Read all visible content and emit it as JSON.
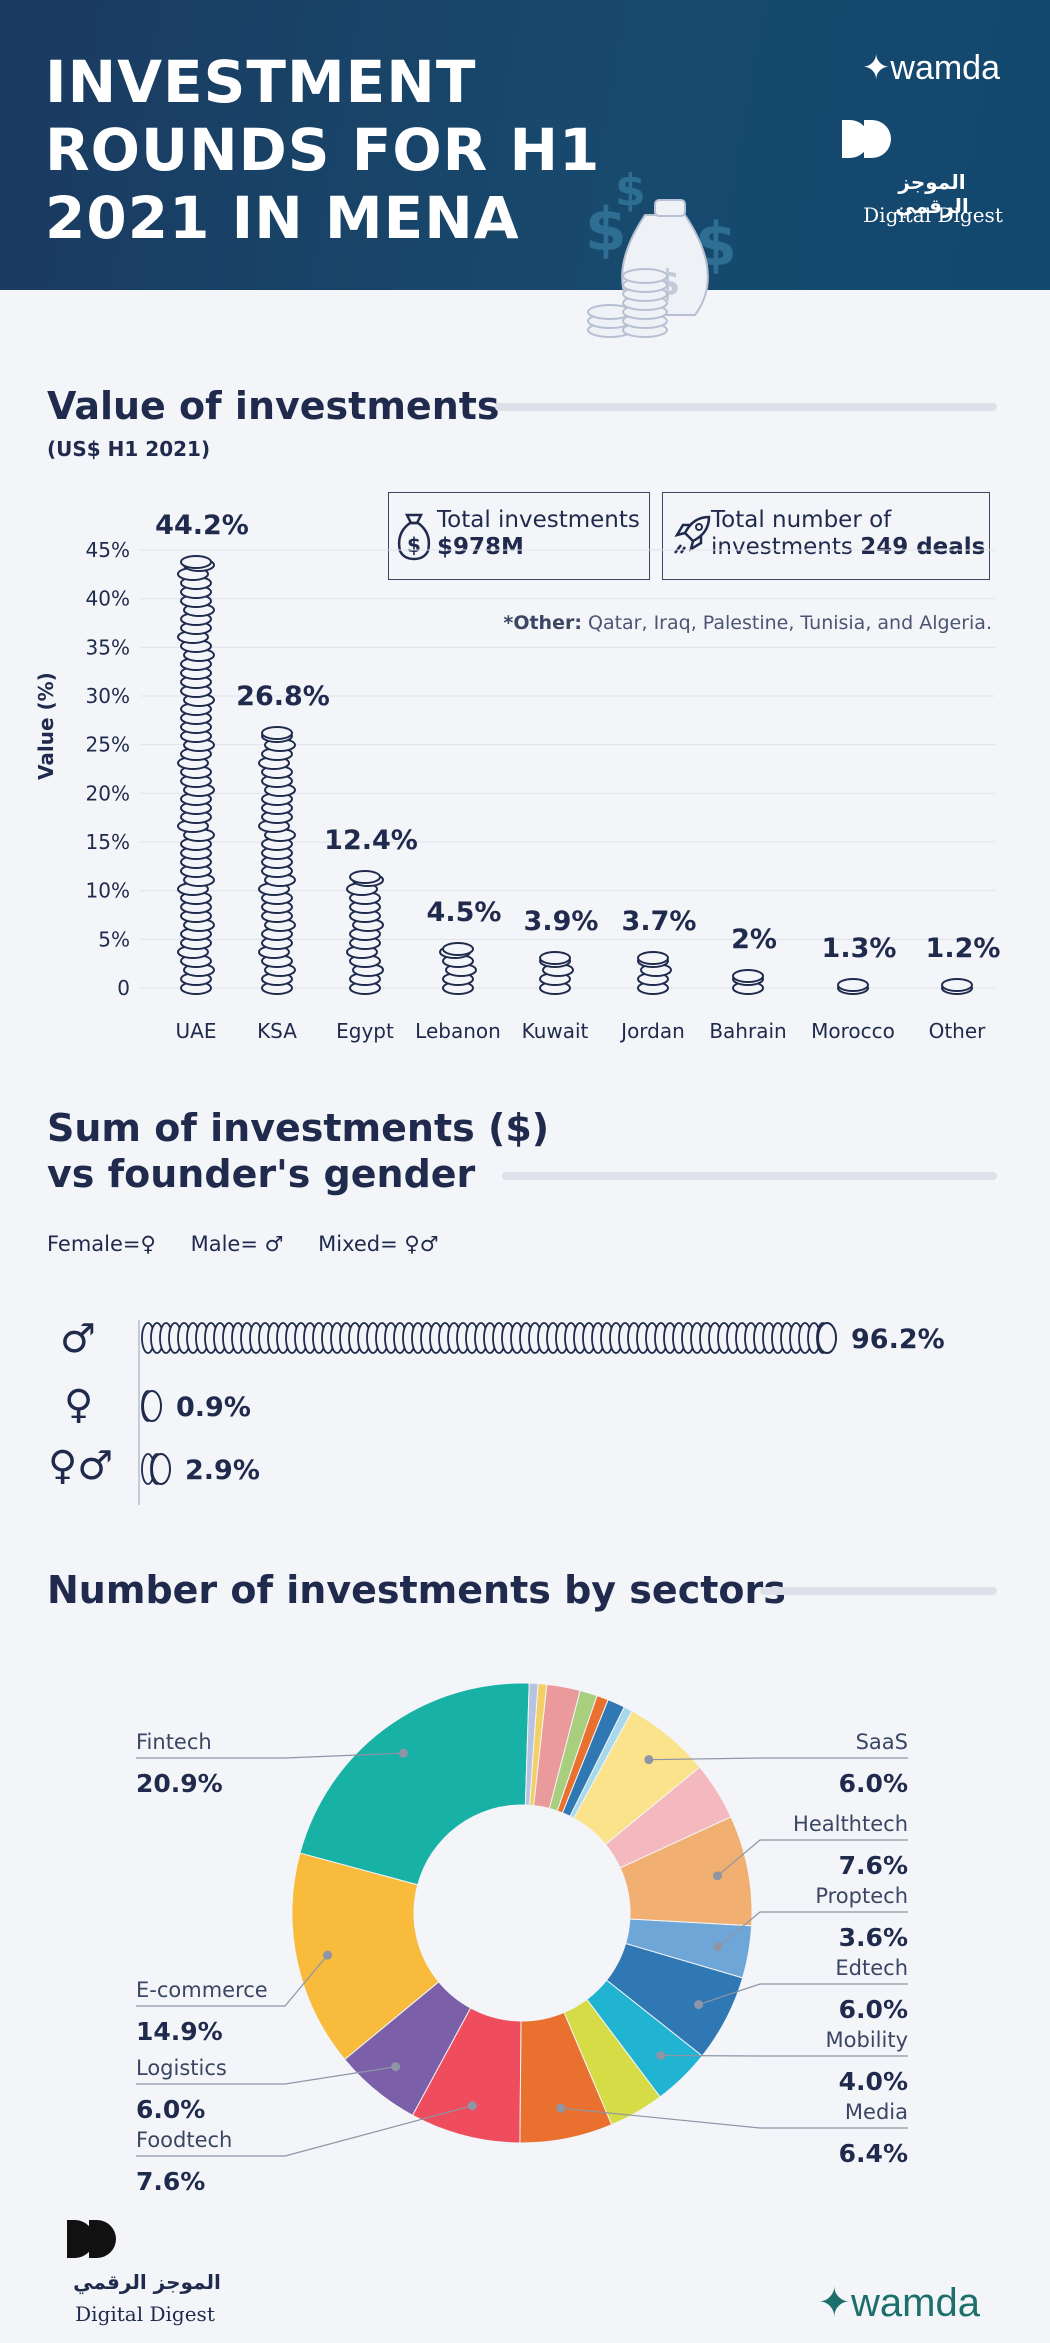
{
  "header": {
    "title": "INVESTMENT ROUNDS FOR H1 2021 IN MENA",
    "wamda": "✦wamda",
    "digest_ar": "الموجز الرقمي",
    "digest_en": "Digital Digest",
    "bg_color": "#1a3a60"
  },
  "value_section": {
    "title": "Value of investments",
    "subtitle": "(US$ H1 2021)",
    "total_label": "Total investments",
    "total_value": "$978M",
    "deals_label_1": "Total number of",
    "deals_label_2": "investments",
    "deals_value": "249 deals",
    "note_bold": "*Other:",
    "note_text": " Qatar, Iraq, Palestine, Tunisia, and Algeria.",
    "total_icon": "money-bag-icon",
    "deals_icon": "rocket-icon"
  },
  "gender_section": {
    "title_1": "Sum of investments ($)",
    "title_2": "vs founder's gender",
    "legend_female": "Female=♀",
    "legend_male": "Male= ♂",
    "legend_mixed": "Mixed= ♀♂",
    "male_symbol": "♂",
    "female_symbol": "♀",
    "mixed_symbol": "♀♂"
  },
  "sector_section": {
    "title": "Number of investments by sectors"
  },
  "footer": {
    "digest_ar": "الموجز الرقمي",
    "digest_en": "Digital Digest",
    "wamda": "✦wamda"
  },
  "chart_data": [
    {
      "type": "bar",
      "ylabel": "Value (%)",
      "ylim": [
        0,
        45
      ],
      "yticks": [
        "45%",
        "40%",
        "35%",
        "30%",
        "25%",
        "20%",
        "15%",
        "10%",
        "5%",
        "0"
      ],
      "categories": [
        "UAE",
        "KSA",
        "Egypt",
        "Lebanon",
        "Kuwait",
        "Jordan",
        "Bahrain",
        "Morocco",
        "Other"
      ],
      "values": [
        44.2,
        26.8,
        12.4,
        4.5,
        3.9,
        3.7,
        2,
        1.3,
        1.2
      ],
      "labels": [
        "44.2%",
        "26.8%",
        "12.4%",
        "4.5%",
        "3.9%",
        "3.7%",
        "2%",
        "1.3%",
        "1.2%"
      ],
      "grid": true
    },
    {
      "type": "bar",
      "orientation": "horizontal",
      "categories": [
        "Male",
        "Female",
        "Mixed"
      ],
      "values": [
        96.2,
        0.9,
        2.9
      ],
      "labels": [
        "96.2%",
        "0.9%",
        "2.9%"
      ]
    },
    {
      "type": "pie",
      "donut": true,
      "slices": [
        {
          "name": "Fintech",
          "value": 20.9,
          "label": "20.9%",
          "color": "#17b1a6",
          "show": true
        },
        {
          "name": "E-commerce",
          "value": 14.9,
          "label": "14.9%",
          "color": "#f8bb3c",
          "show": true
        },
        {
          "name": "Logistics",
          "value": 6.0,
          "label": "6.0%",
          "color": "#7b5fa8",
          "show": true
        },
        {
          "name": "Foodtech",
          "value": 7.6,
          "label": "7.6%",
          "color": "#ef4d5e",
          "show": true
        },
        {
          "name": "Media",
          "value": 6.4,
          "label": "6.4%",
          "color": "#ea7030",
          "show": true
        },
        {
          "name": "",
          "value": 3.8,
          "label": "",
          "color": "#d5dc46",
          "show": false
        },
        {
          "name": "Mobility",
          "value": 4.0,
          "label": "4.0%",
          "color": "#20b3d2",
          "show": true
        },
        {
          "name": "Edtech",
          "value": 6.0,
          "label": "6.0%",
          "color": "#2f78b4",
          "show": true
        },
        {
          "name": "Proptech",
          "value": 3.6,
          "label": "3.6%",
          "color": "#6fa6d8",
          "show": true
        },
        {
          "name": "Healthtech",
          "value": 7.6,
          "label": "7.6%",
          "color": "#f1b072",
          "show": true
        },
        {
          "name": "",
          "value": 4.0,
          "label": "",
          "color": "#f4b8bf",
          "show": false
        },
        {
          "name": "SaaS",
          "value": 6.0,
          "label": "6.0%",
          "color": "#fbe38c",
          "show": true
        },
        {
          "name": "",
          "value": 0.6,
          "label": "",
          "color": "#a7d8ec",
          "show": false
        },
        {
          "name": "",
          "value": 1.2,
          "label": "",
          "color": "#2f78b4",
          "show": false
        },
        {
          "name": "",
          "value": 0.8,
          "label": "",
          "color": "#ea7030",
          "show": false
        },
        {
          "name": "",
          "value": 1.2,
          "label": "",
          "color": "#a8cf7e",
          "show": false
        },
        {
          "name": "",
          "value": 2.3,
          "label": "",
          "color": "#ea9a9a",
          "show": false
        },
        {
          "name": "",
          "value": 0.6,
          "label": "",
          "color": "#f3cf66",
          "show": false
        },
        {
          "name": "",
          "value": 0.6,
          "label": "",
          "color": "#b7c3e0",
          "show": false
        }
      ]
    }
  ]
}
